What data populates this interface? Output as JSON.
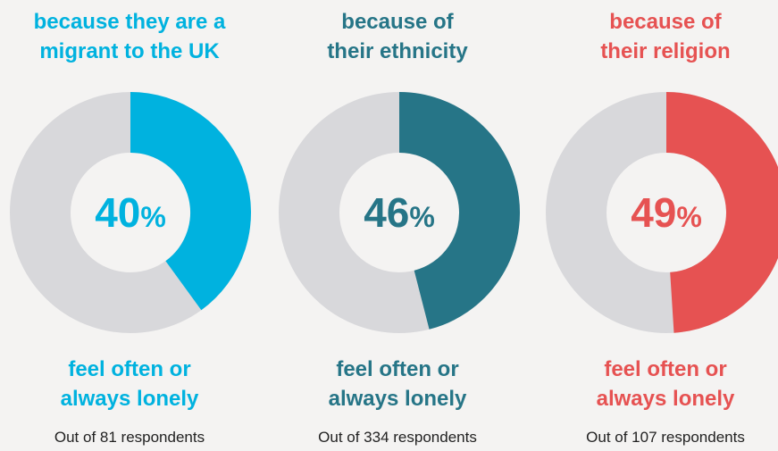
{
  "chart_data": [
    {
      "type": "pie",
      "title_lines": [
        "because they are a",
        "migrant to the UK"
      ],
      "value": 40,
      "value_label": "40",
      "percent_sign": "%",
      "caption_lines": [
        "feel often or",
        "always lonely"
      ],
      "respondents": "Out of 81 respondents",
      "color": "#00b2df",
      "track_color": "#d8d8db"
    },
    {
      "type": "pie",
      "title_lines": [
        "because of",
        "their ethnicity"
      ],
      "value": 46,
      "value_label": "46",
      "percent_sign": "%",
      "caption_lines": [
        "feel often or",
        "always lonely"
      ],
      "respondents": "Out of 334 respondents",
      "color": "#267587",
      "track_color": "#d8d8db"
    },
    {
      "type": "pie",
      "title_lines": [
        "because of",
        "their religion"
      ],
      "value": 49,
      "value_label": "49",
      "percent_sign": "%",
      "caption_lines": [
        "feel often or",
        "always lonely"
      ],
      "respondents": "Out of 107 respondents",
      "color": "#e65252",
      "track_color": "#d8d8db"
    }
  ]
}
